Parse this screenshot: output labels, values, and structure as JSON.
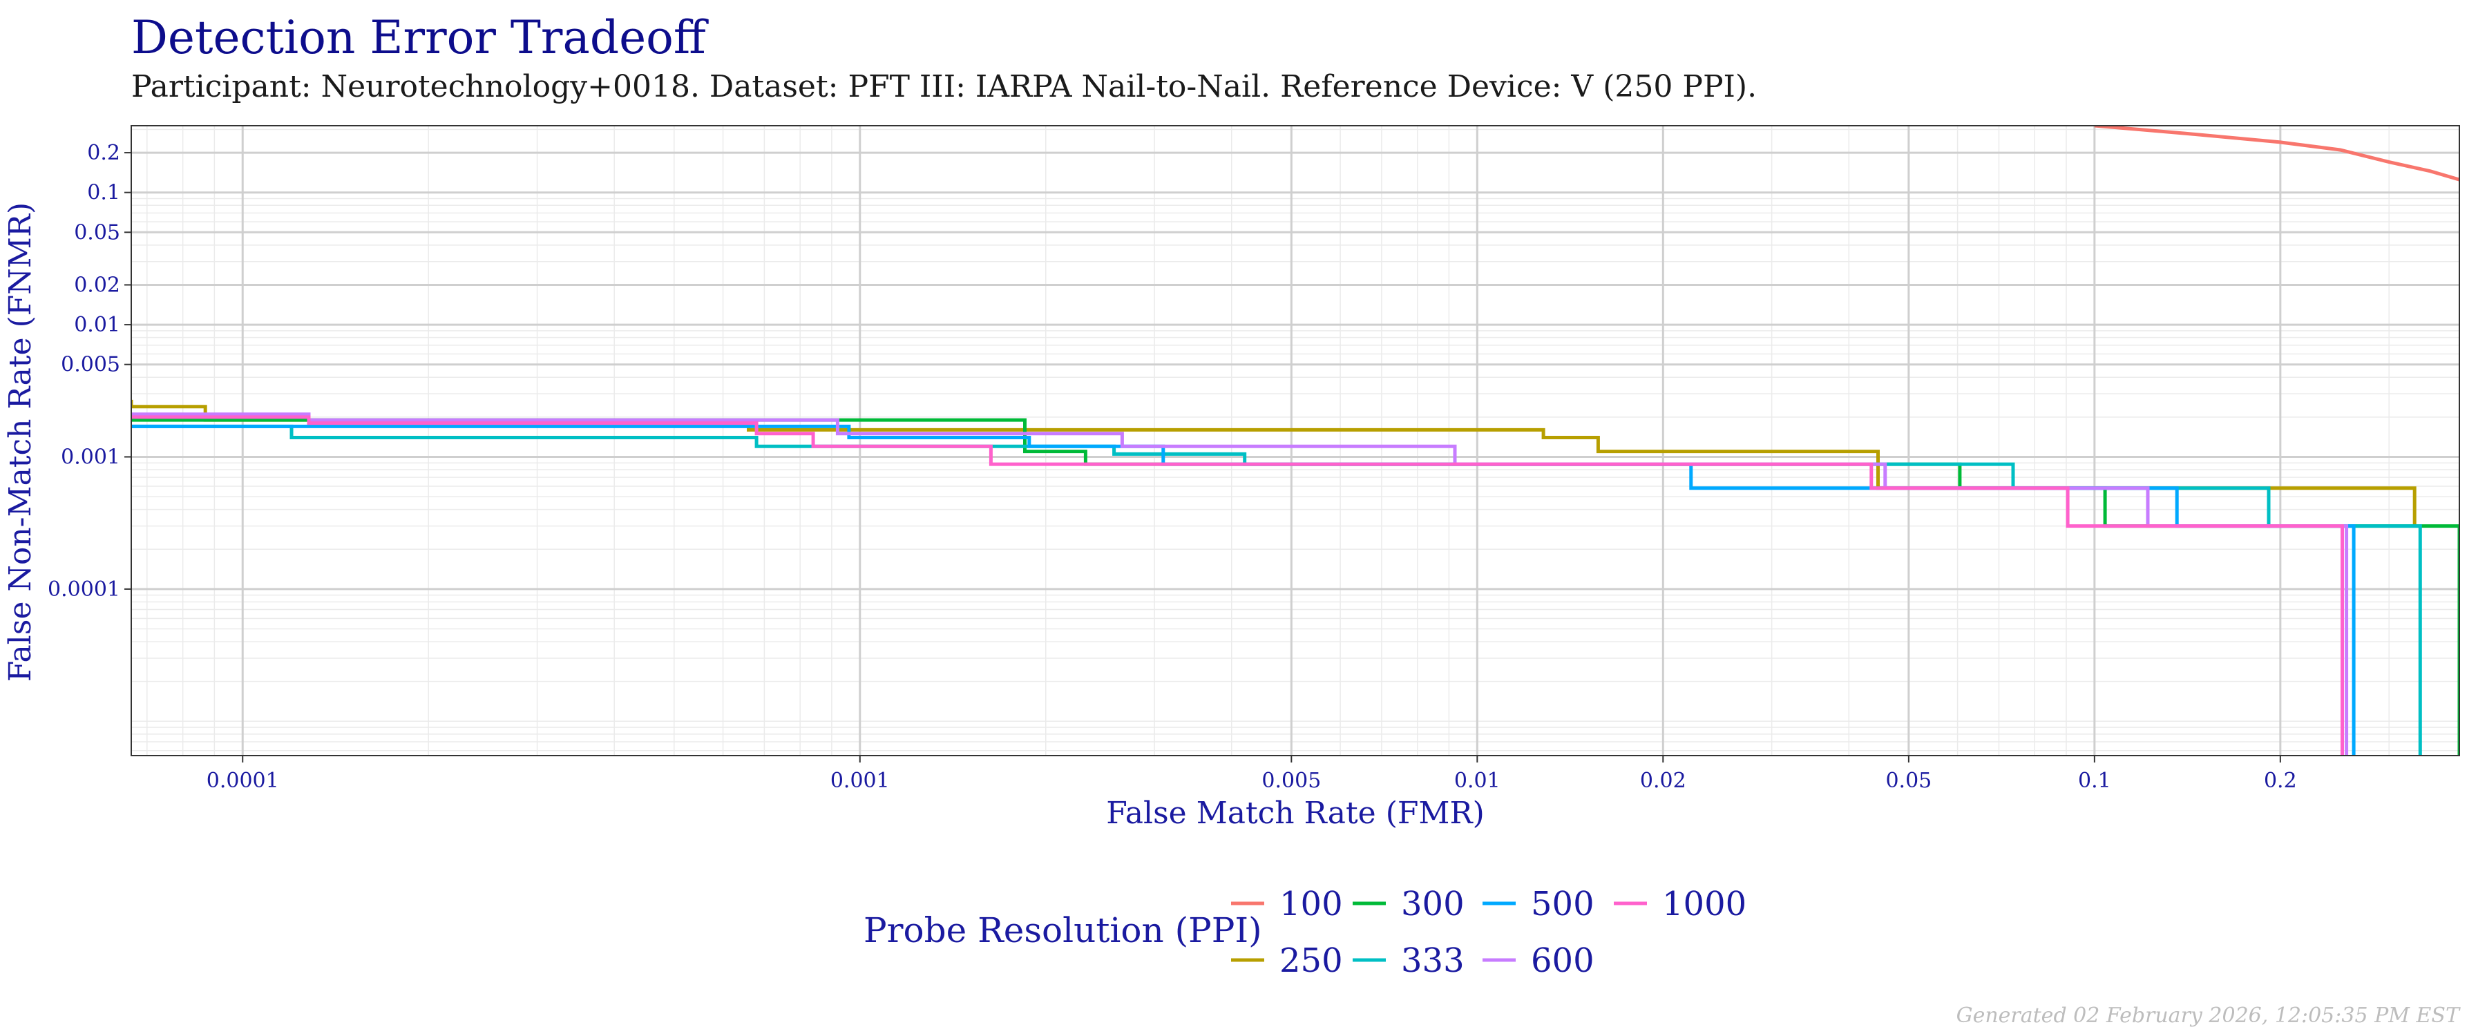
{
  "chart_data": {
    "type": "line",
    "title": "Detection Error Tradeoff",
    "subtitle": "Participant: Neurotechnology+0018. Dataset: PFT III: IARPA Nail-to-Nail. Reference Device: V (250 PPI).",
    "xlabel": "False Match Rate (FMR)",
    "ylabel": "False Non-Match Rate (FNMR)",
    "x_scale": "log",
    "y_scale": "log",
    "xlim": [
      6.6e-05,
      0.39
    ],
    "ylim": [
      5.5e-06,
      0.32
    ],
    "x_ticks": [
      {
        "value": 0.0001,
        "label": "0.0001"
      },
      {
        "value": 0.001,
        "label": "0.001"
      },
      {
        "value": 0.005,
        "label": "0.005"
      },
      {
        "value": 0.01,
        "label": "0.01"
      },
      {
        "value": 0.02,
        "label": "0.02"
      },
      {
        "value": 0.05,
        "label": "0.05"
      },
      {
        "value": 0.1,
        "label": "0.1"
      },
      {
        "value": 0.2,
        "label": "0.2"
      }
    ],
    "y_ticks": [
      {
        "value": 0.2,
        "label": "0.2"
      },
      {
        "value": 0.1,
        "label": "0.1"
      },
      {
        "value": 0.05,
        "label": "0.05"
      },
      {
        "value": 0.02,
        "label": "0.02"
      },
      {
        "value": 0.01,
        "label": "0.01"
      },
      {
        "value": 0.005,
        "label": "0.005"
      },
      {
        "value": 0.001,
        "label": "0.001"
      },
      {
        "value": 0.0001,
        "label": "0.0001"
      }
    ],
    "grid": true,
    "legend_position": "bottom",
    "legend_title": "Probe Resolution (PPI)",
    "series": [
      {
        "name": "100",
        "color": "#F8766D",
        "step": false,
        "points": [
          [
            0.1,
            0.32
          ],
          [
            0.14,
            0.28
          ],
          [
            0.2,
            0.24
          ],
          [
            0.25,
            0.21
          ],
          [
            0.3,
            0.17
          ],
          [
            0.35,
            0.145
          ],
          [
            0.39,
            0.125
          ]
        ]
      },
      {
        "name": "250",
        "color": "#B79F00",
        "step": true,
        "points": [
          [
            6.6e-05,
            0.0027
          ],
          [
            6.6e-05,
            0.0024
          ],
          [
            8.7e-05,
            0.0024
          ],
          [
            8.7e-05,
            0.0019
          ],
          [
            0.00066,
            0.0019
          ],
          [
            0.00066,
            0.0016
          ],
          [
            0.0128,
            0.0016
          ],
          [
            0.0128,
            0.0014
          ],
          [
            0.0157,
            0.0014
          ],
          [
            0.0157,
            0.0011
          ],
          [
            0.0446,
            0.0011
          ],
          [
            0.0446,
            0.00058
          ],
          [
            0.33,
            0.00058
          ],
          [
            0.33,
            0.0003
          ]
        ]
      },
      {
        "name": "300",
        "color": "#00BA38",
        "step": true,
        "points": [
          [
            6.6e-05,
            0.0019
          ],
          [
            0.00185,
            0.0019
          ],
          [
            0.00185,
            0.0011
          ],
          [
            0.00232,
            0.0011
          ],
          [
            0.00232,
            0.00088
          ],
          [
            0.0605,
            0.00088
          ],
          [
            0.0605,
            0.00058
          ],
          [
            0.104,
            0.00058
          ],
          [
            0.104,
            0.0003
          ],
          [
            0.39,
            0.0003
          ],
          [
            0.39,
            5.5e-06
          ]
        ]
      },
      {
        "name": "333",
        "color": "#00BFC4",
        "step": true,
        "points": [
          [
            6.6e-05,
            0.0017
          ],
          [
            0.00012,
            0.0017
          ],
          [
            0.00012,
            0.0014
          ],
          [
            0.00068,
            0.0014
          ],
          [
            0.00068,
            0.0012
          ],
          [
            0.00258,
            0.0012
          ],
          [
            0.00258,
            0.00105
          ],
          [
            0.0042,
            0.00105
          ],
          [
            0.0042,
            0.00088
          ],
          [
            0.0738,
            0.00088
          ],
          [
            0.0738,
            0.00058
          ],
          [
            0.1915,
            0.00058
          ],
          [
            0.1915,
            0.0003
          ],
          [
            0.337,
            0.0003
          ],
          [
            0.337,
            5.5e-06
          ]
        ]
      },
      {
        "name": "500",
        "color": "#00A9FF",
        "step": true,
        "points": [
          [
            6.6e-05,
            0.0017
          ],
          [
            0.00096,
            0.0017
          ],
          [
            0.00096,
            0.0014
          ],
          [
            0.00188,
            0.0014
          ],
          [
            0.00188,
            0.0012
          ],
          [
            0.0031,
            0.0012
          ],
          [
            0.0031,
            0.00088
          ],
          [
            0.0222,
            0.00088
          ],
          [
            0.0222,
            0.00058
          ],
          [
            0.136,
            0.00058
          ],
          [
            0.136,
            0.0003
          ],
          [
            0.263,
            0.0003
          ],
          [
            0.263,
            5.5e-06
          ]
        ]
      },
      {
        "name": "600",
        "color": "#C77CFF",
        "step": true,
        "points": [
          [
            6.6e-05,
            0.0021
          ],
          [
            0.000128,
            0.0021
          ],
          [
            0.000128,
            0.0019
          ],
          [
            0.00092,
            0.0019
          ],
          [
            0.00092,
            0.0015
          ],
          [
            0.00266,
            0.0015
          ],
          [
            0.00266,
            0.0012
          ],
          [
            0.0092,
            0.0012
          ],
          [
            0.0092,
            0.00088
          ],
          [
            0.0458,
            0.00088
          ],
          [
            0.0458,
            0.00058
          ],
          [
            0.122,
            0.00058
          ],
          [
            0.122,
            0.0003
          ],
          [
            0.256,
            0.0003
          ],
          [
            0.256,
            5.5e-06
          ]
        ]
      },
      {
        "name": "1000",
        "color": "#FF61CC",
        "step": true,
        "points": [
          [
            6.6e-05,
            0.002
          ],
          [
            0.000128,
            0.002
          ],
          [
            0.000128,
            0.0018
          ],
          [
            0.00068,
            0.0018
          ],
          [
            0.00068,
            0.0015
          ],
          [
            0.00084,
            0.0015
          ],
          [
            0.00084,
            0.0012
          ],
          [
            0.00163,
            0.0012
          ],
          [
            0.00163,
            0.00088
          ],
          [
            0.0435,
            0.00088
          ],
          [
            0.0435,
            0.00058
          ],
          [
            0.0905,
            0.00058
          ],
          [
            0.0905,
            0.0003
          ],
          [
            0.252,
            0.0003
          ],
          [
            0.252,
            5.5e-06
          ]
        ]
      }
    ]
  },
  "legend_layout": [
    [
      "100",
      "300",
      "500",
      "1000"
    ],
    [
      "250",
      "333",
      "600"
    ]
  ],
  "footer": "Generated 02 February 2026, 12:05:35 PM EST"
}
